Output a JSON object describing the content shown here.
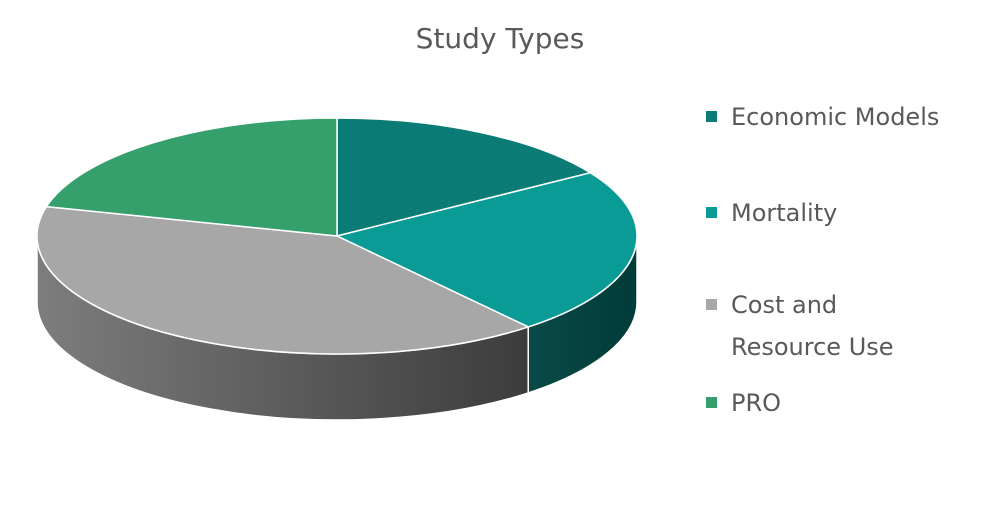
{
  "chart_data": {
    "type": "pie",
    "title": "Study Types",
    "categories": [
      "Economic Models",
      "Mortality",
      "Cost and\nResource Use",
      "PRO"
    ],
    "values": [
      16,
      23,
      40,
      21
    ],
    "colors": [
      "#0b7b76",
      "#0a9b96",
      "#a7a7a7",
      "#35a06b"
    ],
    "side_colors": [
      "#095f5b",
      "#0a4a46",
      "#7d7d7d",
      "#2b8257"
    ],
    "style": "3d",
    "legend_position": "right"
  }
}
